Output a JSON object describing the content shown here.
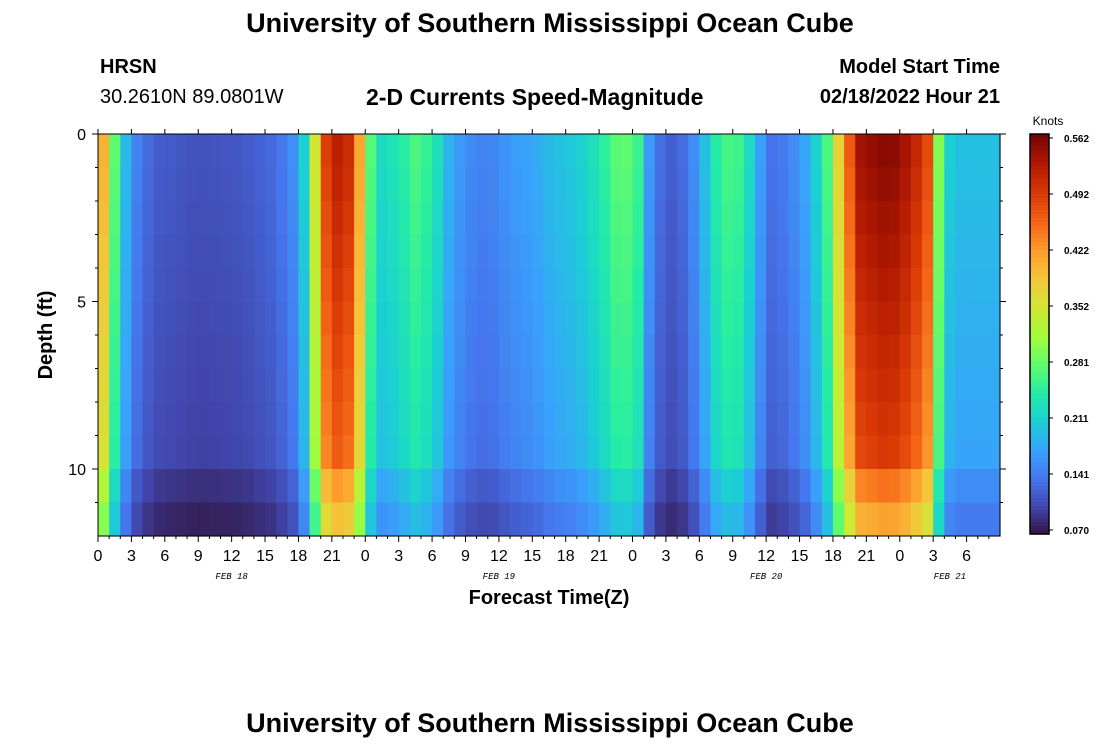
{
  "header": {
    "title": "University of Southern Mississippi Ocean Cube",
    "station": "HRSN",
    "coordinates": "30.2610N  89.0801W",
    "subtitle": "2-D Currents Speed-Magnitude",
    "model_start_label": "Model Start Time",
    "model_start_value": "02/18/2022 Hour 21"
  },
  "footer": {
    "title": "University of Southern Mississippi Ocean Cube"
  },
  "chart_data": {
    "type": "heatmap",
    "title": "2-D Currents Speed-Magnitude",
    "xlabel": "Forecast Time(Z)",
    "ylabel": "Depth (ft)",
    "colorbar_label": "Knots",
    "colorbar_ticks": [
      "0.070",
      "0.141",
      "0.211",
      "0.281",
      "0.352",
      "0.422",
      "0.492",
      "0.562"
    ],
    "value_range": [
      0.07,
      0.562
    ],
    "x_hours_range": [
      0,
      81
    ],
    "ylim": [
      0,
      12
    ],
    "y_ticks": [
      "0",
      "5",
      "10"
    ],
    "x_tick_labels": [
      "0",
      "3",
      "6",
      "9",
      "12",
      "15",
      "18",
      "21",
      "0",
      "3",
      "6",
      "9",
      "12",
      "15",
      "18",
      "21",
      "0",
      "3",
      "6",
      "9",
      "12",
      "15",
      "18",
      "21",
      "0",
      "3",
      "6"
    ],
    "day_labels": [
      {
        "label": "FEB 18",
        "hour": 12
      },
      {
        "label": "FEB 19",
        "hour": 36
      },
      {
        "label": "FEB 20",
        "hour": 60
      },
      {
        "label": "FEB 21",
        "hour": 76.5
      }
    ],
    "surface_speed_profile": [
      {
        "hour": 0,
        "value": 0.48
      },
      {
        "hour": 1,
        "value": 0.33
      },
      {
        "hour": 2,
        "value": 0.23
      },
      {
        "hour": 3,
        "value": 0.16
      },
      {
        "hour": 5,
        "value": 0.125
      },
      {
        "hour": 9,
        "value": 0.115
      },
      {
        "hour": 13,
        "value": 0.12
      },
      {
        "hour": 16,
        "value": 0.135
      },
      {
        "hour": 18,
        "value": 0.17
      },
      {
        "hour": 19,
        "value": 0.26
      },
      {
        "hour": 20,
        "value": 0.45
      },
      {
        "hour": 21,
        "value": 0.53
      },
      {
        "hour": 23,
        "value": 0.5
      },
      {
        "hour": 24,
        "value": 0.33
      },
      {
        "hour": 25,
        "value": 0.22
      },
      {
        "hour": 27,
        "value": 0.24
      },
      {
        "hour": 28.5,
        "value": 0.27
      },
      {
        "hour": 30,
        "value": 0.25
      },
      {
        "hour": 31.5,
        "value": 0.19
      },
      {
        "hour": 33,
        "value": 0.16
      },
      {
        "hour": 35,
        "value": 0.15
      },
      {
        "hour": 37,
        "value": 0.17
      },
      {
        "hour": 39,
        "value": 0.18
      },
      {
        "hour": 41,
        "value": 0.2
      },
      {
        "hour": 43,
        "value": 0.21
      },
      {
        "hour": 45,
        "value": 0.24
      },
      {
        "hour": 47,
        "value": 0.29
      },
      {
        "hour": 48.5,
        "value": 0.26
      },
      {
        "hour": 49.5,
        "value": 0.17
      },
      {
        "hour": 51,
        "value": 0.12
      },
      {
        "hour": 53,
        "value": 0.14
      },
      {
        "hour": 54.5,
        "value": 0.2
      },
      {
        "hour": 56,
        "value": 0.27
      },
      {
        "hour": 58,
        "value": 0.26
      },
      {
        "hour": 59,
        "value": 0.19
      },
      {
        "hour": 60.5,
        "value": 0.14
      },
      {
        "hour": 62,
        "value": 0.15
      },
      {
        "hour": 64,
        "value": 0.19
      },
      {
        "hour": 65.5,
        "value": 0.27
      },
      {
        "hour": 67,
        "value": 0.43
      },
      {
        "hour": 68.5,
        "value": 0.54
      },
      {
        "hour": 71,
        "value": 0.56
      },
      {
        "hour": 73,
        "value": 0.53
      },
      {
        "hour": 74.5,
        "value": 0.48
      },
      {
        "hour": 75.5,
        "value": 0.3
      },
      {
        "hour": 76.2,
        "value": 0.22
      },
      {
        "hour": 77,
        "value": 0.2
      }
    ],
    "colormap": [
      "#30123b",
      "#4145ab",
      "#4675ed",
      "#39a2fc",
      "#1bcfd4",
      "#24eca6",
      "#61fc6c",
      "#a4fc3b",
      "#d1e834",
      "#f3c63a",
      "#fe9b2d",
      "#f36315",
      "#d93806",
      "#b11901",
      "#7a0402"
    ]
  }
}
